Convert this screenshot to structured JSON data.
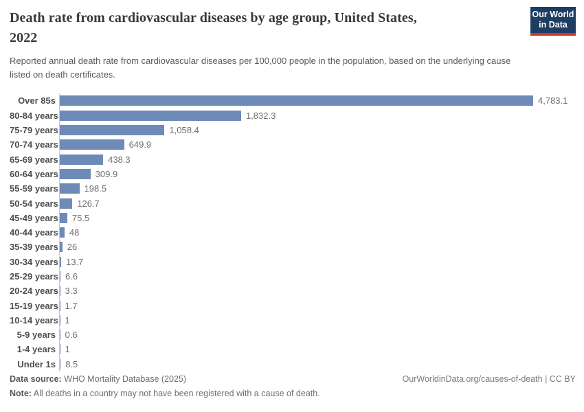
{
  "header": {
    "title": "Death rate from cardiovascular diseases by age group, United States, 2022",
    "title_line1": "Death rate from cardiovascular diseases by age group, United States,",
    "title_line2": "2022",
    "subtitle": "Reported annual death rate from cardiovascular diseases per 100,000 people in the population, based on the underlying cause listed on death certificates.",
    "logo": {
      "line1": "Our World",
      "line2": "in Data"
    }
  },
  "chart_data": {
    "type": "bar",
    "orientation": "horizontal",
    "title": "Death rate from cardiovascular diseases by age group, United States, 2022",
    "categories": [
      "Over 85s",
      "80-84 years",
      "75-79 years",
      "70-74 years",
      "65-69 years",
      "60-64 years",
      "55-59 years",
      "50-54 years",
      "45-49 years",
      "40-44 years",
      "35-39 years",
      "30-34 years",
      "25-29 years",
      "20-24 years",
      "15-19 years",
      "10-14 years",
      "5-9 years",
      "1-4 years",
      "Under 1s"
    ],
    "values": [
      4783.1,
      1832.3,
      1058.4,
      649.9,
      438.3,
      309.9,
      198.5,
      126.7,
      75.5,
      48,
      26,
      13.7,
      6.6,
      3.3,
      1.7,
      1,
      0.6,
      1,
      8.5
    ],
    "value_labels": [
      "4,783.1",
      "1,832.3",
      "1,058.4",
      "649.9",
      "438.3",
      "309.9",
      "198.5",
      "126.7",
      "75.5",
      "48",
      "26",
      "13.7",
      "6.6",
      "3.3",
      "1.7",
      "1",
      "0.6",
      "1",
      "8.5"
    ],
    "xlim": [
      0,
      4783.1
    ],
    "grid": false,
    "legend": false,
    "bar_color": "#6e8ab7",
    "axis_color": "#c9c9c9"
  },
  "footer": {
    "source_label": "Data source:",
    "source_text": "WHO Mortality Database (2025)",
    "note_label": "Note:",
    "note_text": "All deaths in a country may not have been registered with a cause of death.",
    "attribution": "OurWorldinData.org/causes-of-death | CC BY"
  },
  "colors": {
    "bar": "#6e8ab7",
    "logo_background": "#1d3d63",
    "logo_accent": "#d0342c",
    "title_text": "#383838"
  }
}
